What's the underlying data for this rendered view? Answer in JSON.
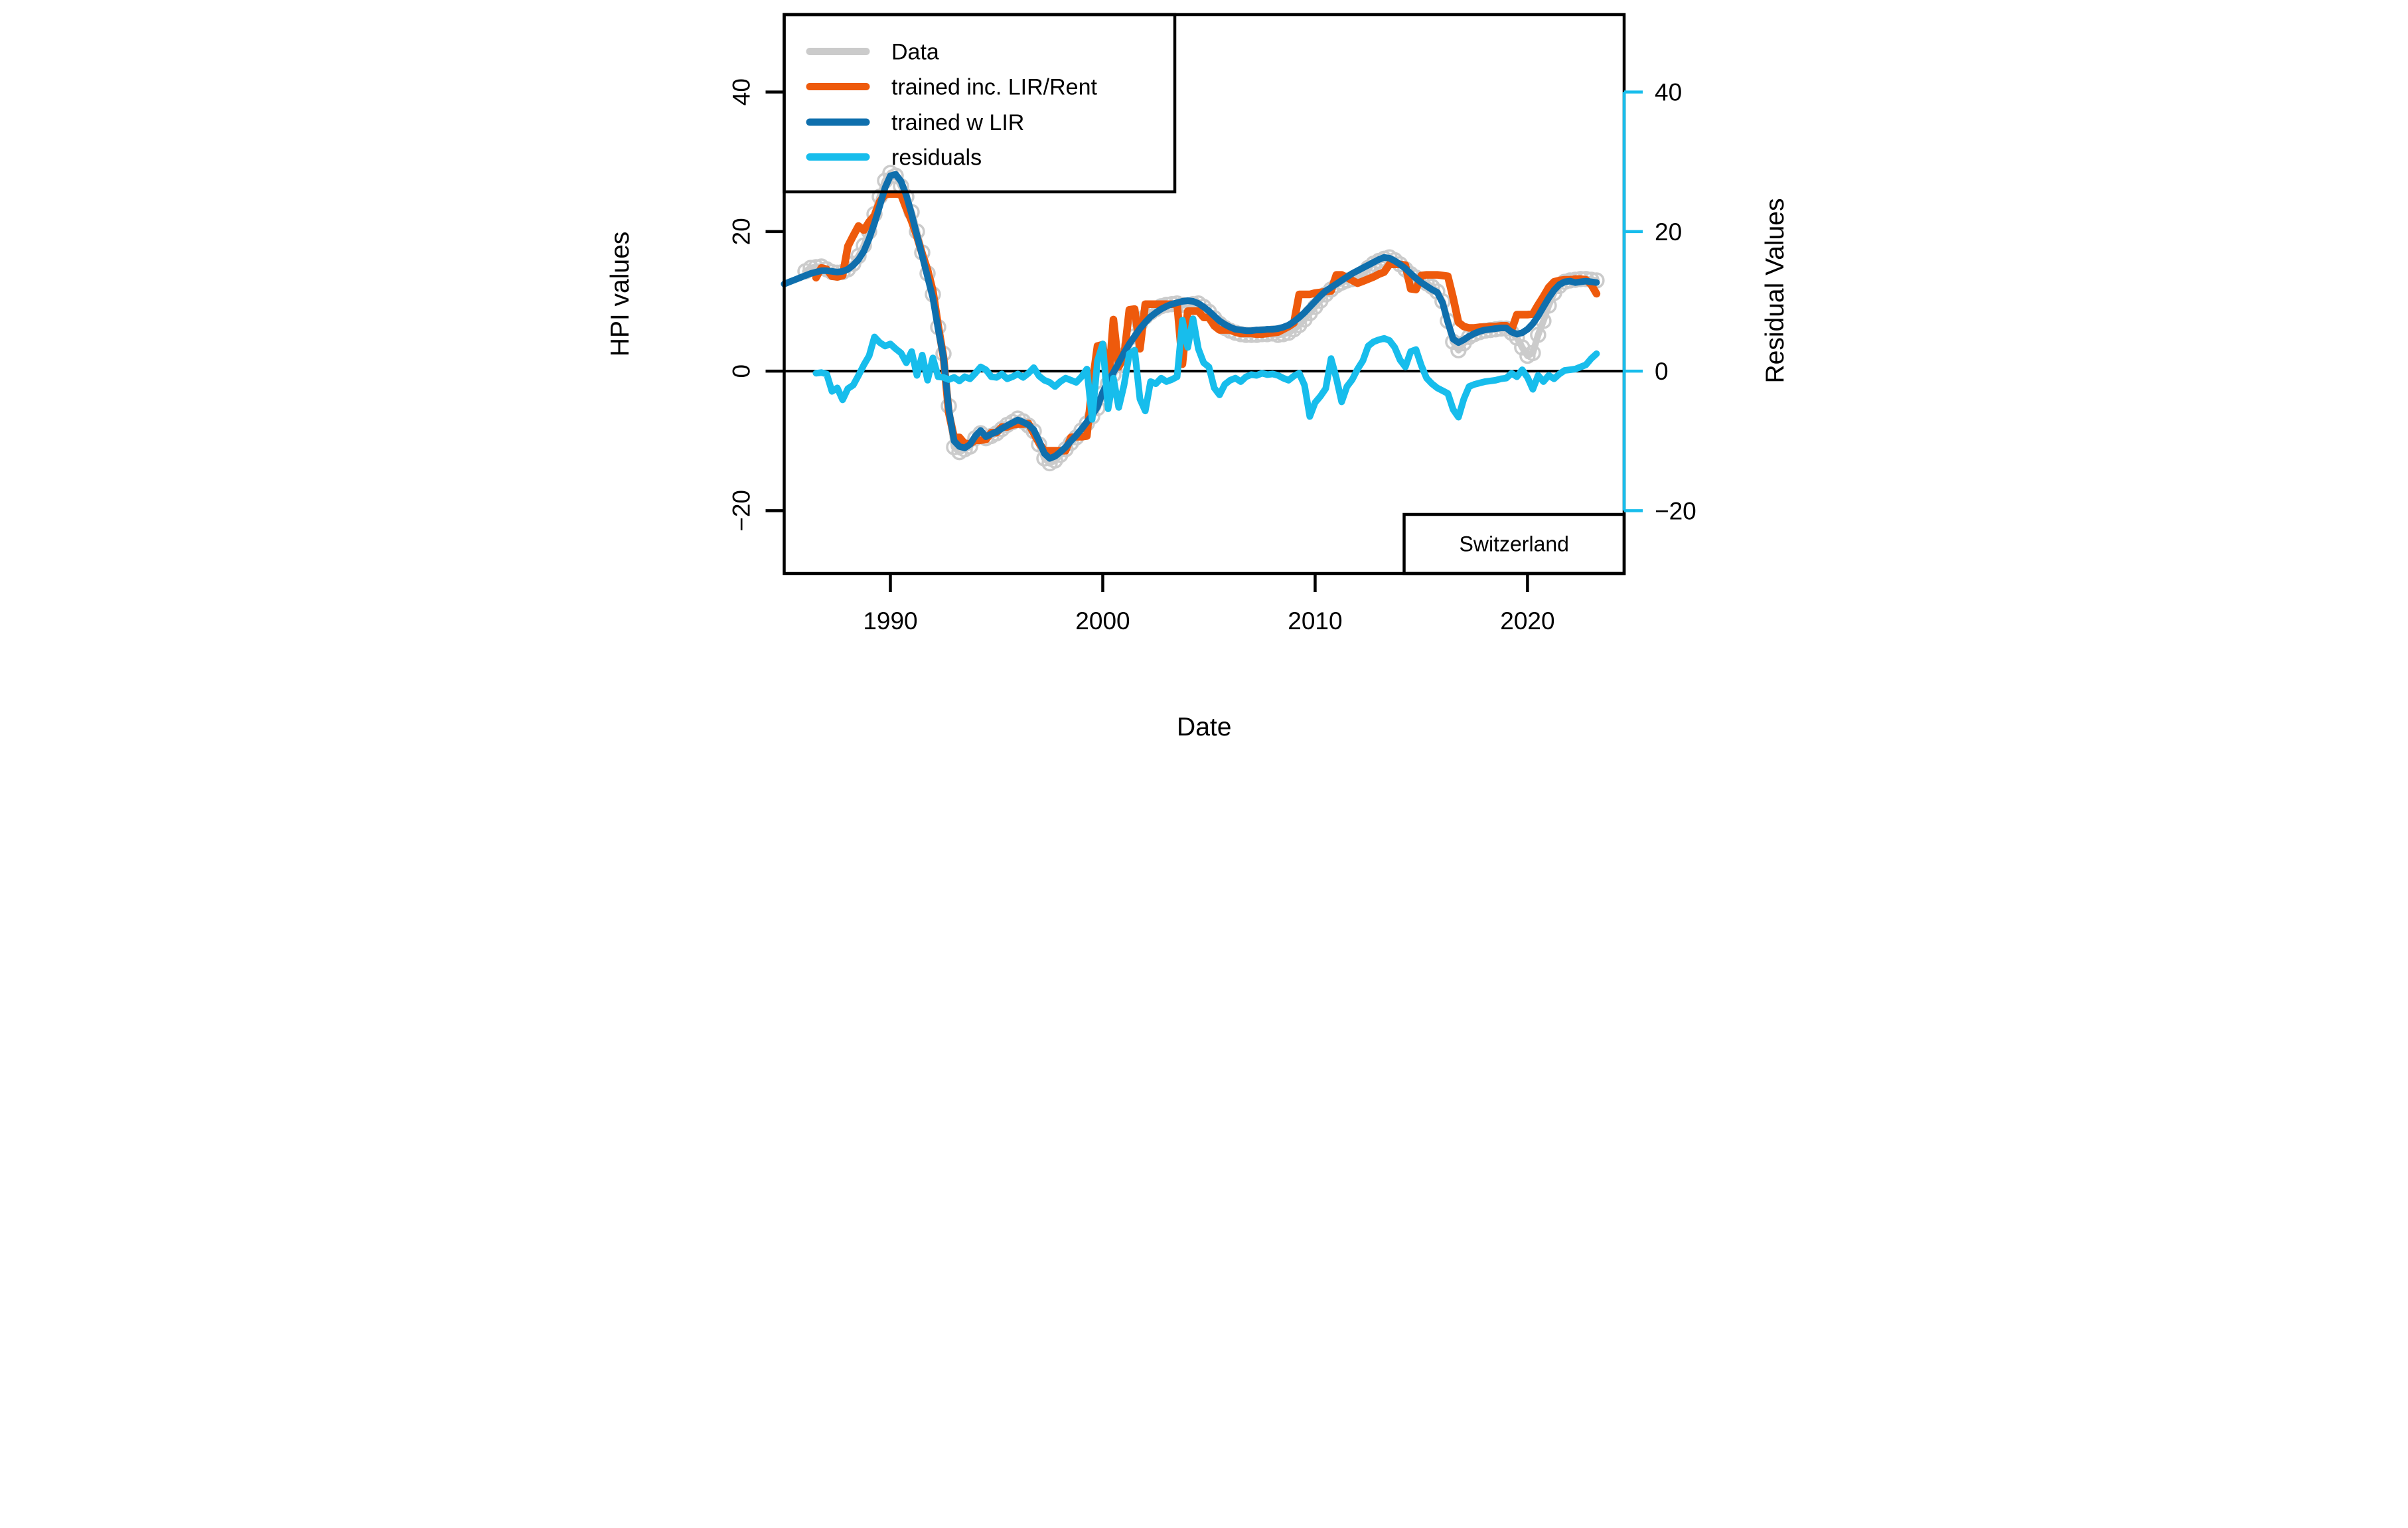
{
  "annotation_box": {
    "label": "Switzerland"
  },
  "axis_labels": {
    "x": "Date",
    "y_left": "HPI values",
    "y_right": "Residual Values"
  },
  "ticks": {
    "x": {
      "values": [
        1990,
        2000,
        2010,
        2020
      ],
      "labels": [
        "1990",
        "2000",
        "2010",
        "2020"
      ]
    },
    "y_left": {
      "values": [
        40,
        20,
        0,
        -20
      ],
      "labels": [
        "40",
        "20",
        "0",
        "−20"
      ]
    },
    "y_right": {
      "values": [
        40,
        20,
        0,
        -20
      ],
      "labels": [
        "40",
        "20",
        "0",
        "−20"
      ]
    }
  },
  "legend": {
    "entries": [
      {
        "label": "Data",
        "series": "data"
      },
      {
        "label": "trained inc. LIR/Rent",
        "series": "trained_inc_lir_rent"
      },
      {
        "label": "trained w LIR",
        "series": "trained_w_lir"
      },
      {
        "label": "residuals",
        "series": "residuals"
      }
    ]
  },
  "colors": {
    "data_gray": "#cbcbcb",
    "trained_inc_orange": "#ee5a0c",
    "trained_w_lir_blue": "#0f6fad",
    "residuals_cyan": "#17bdec",
    "axis_black": "#000000",
    "background": "#ffffff"
  },
  "chart_data": {
    "type": "line",
    "title": "",
    "xlabel": "Date",
    "ylabel_left": "HPI values",
    "ylabel_right": "Residual Values",
    "x_range": [
      1985.0,
      2024.55
    ],
    "y_range": [
      -29.0,
      51.1
    ],
    "zero_line": true,
    "grid": false,
    "legend_position": "topleft",
    "series": [
      {
        "name": "Data",
        "key": "data",
        "color": "#cbcbcb",
        "marker": "circle",
        "line_width": 10,
        "axis": "left",
        "x_start": 1986.0,
        "x_step": 0.25,
        "values": [
          14.3,
          14.8,
          14.9,
          15.0,
          14.6,
          14.2,
          14.1,
          14.2,
          14.6,
          15.4,
          16.5,
          18.0,
          20.0,
          22.5,
          25.0,
          27.3,
          28.4,
          28.0,
          26.5,
          25.0,
          22.8,
          20.0,
          17.0,
          14.0,
          11.0,
          6.3,
          2.5,
          -5.0,
          -10.9,
          -11.6,
          -11.2,
          -10.8,
          -9.6,
          -8.9,
          -9.6,
          -9.3,
          -8.9,
          -8.3,
          -7.7,
          -7.3,
          -6.8,
          -7.2,
          -7.8,
          -8.6,
          -10.5,
          -12.5,
          -13.2,
          -12.8,
          -12.0,
          -11.2,
          -10.3,
          -9.5,
          -8.5,
          -7.5,
          -6.5,
          -5.3,
          -3.2,
          -1.8,
          -0.5,
          0.9,
          2.3,
          3.7,
          5.0,
          6.8,
          7.8,
          8.4,
          8.9,
          9.3,
          9.5,
          9.6,
          9.7,
          9.5,
          9.4,
          9.6,
          9.7,
          9.2,
          8.5,
          7.6,
          6.8,
          6.2,
          5.8,
          5.5,
          5.3,
          5.2,
          5.2,
          5.2,
          5.3,
          5.3,
          5.4,
          5.2,
          5.3,
          5.5,
          6.0,
          6.6,
          7.4,
          8.3,
          9.2,
          10.1,
          11.0,
          11.7,
          12.3,
          12.7,
          13.0,
          13.2,
          13.4,
          13.9,
          14.8,
          15.4,
          15.8,
          16.1,
          16.3,
          15.9,
          15.3,
          14.6,
          13.9,
          13.4,
          13.0,
          12.6,
          12.1,
          11.4,
          10.0,
          7.2,
          4.2,
          3.0,
          4.0,
          4.9,
          5.3,
          5.6,
          5.8,
          5.9,
          6.0,
          6.1,
          6.1,
          5.5,
          4.8,
          3.4,
          2.2,
          2.6,
          5.2,
          7.2,
          9.4,
          11.2,
          12.2,
          12.8,
          13.0,
          13.1,
          13.2,
          13.2,
          13.1,
          13.0
        ]
      },
      {
        "name": "trained inc. LIR/Rent",
        "key": "trained_inc_lir_rent",
        "color": "#ee5a0c",
        "marker": "none",
        "line_width": 11.5,
        "axis": "left",
        "x_start": 1986.5,
        "x_step": 0.25,
        "values": [
          13.4,
          14.8,
          14.6,
          13.6,
          13.5,
          13.7,
          17.9,
          19.4,
          20.8,
          20.2,
          21.4,
          22.3,
          24.3,
          25.3,
          25.4,
          25.4,
          25.3,
          23.3,
          21.5,
          19.3,
          16.8,
          14.5,
          11.5,
          6.5,
          2.0,
          -6.0,
          -9.5,
          -9.5,
          -10.4,
          -10.4,
          -9.9,
          -9.9,
          -9.8,
          -8.8,
          -8.8,
          -8.0,
          -8.0,
          -7.7,
          -7.6,
          -7.6,
          -7.5,
          -8.9,
          -10.3,
          -11.4,
          -11.4,
          -11.4,
          -11.4,
          -11.4,
          -9.5,
          -9.4,
          -9.4,
          -9.3,
          -2.0,
          3.6,
          3.8,
          -2.4,
          7.4,
          0.6,
          2.1,
          8.8,
          8.9,
          3.2,
          9.6,
          9.6,
          9.6,
          9.6,
          9.6,
          9.6,
          9.6,
          1.0,
          8.6,
          8.6,
          8.6,
          7.7,
          7.7,
          6.5,
          5.9,
          5.9,
          5.9,
          5.6,
          5.4,
          5.4,
          5.4,
          5.3,
          5.3,
          5.4,
          5.5,
          5.6,
          6.0,
          6.4,
          6.9,
          11.0,
          11.0,
          11.0,
          11.2,
          11.3,
          11.4,
          11.5,
          13.8,
          13.8,
          13.4,
          13.0,
          12.6,
          12.9,
          13.2,
          13.5,
          13.9,
          14.2,
          15.3,
          15.3,
          15.3,
          15.2,
          11.8,
          11.7,
          13.7,
          13.8,
          13.8,
          13.8,
          13.7,
          13.6,
          10.5,
          7.0,
          6.4,
          6.2,
          6.2,
          6.3,
          6.3,
          6.4,
          6.4,
          6.5,
          6.5,
          5.9,
          8.1,
          8.1,
          8.1,
          8.2,
          9.5,
          10.7,
          12.0,
          12.8,
          13.0,
          13.1,
          13.1,
          13.2,
          13.2,
          13.1,
          12.4,
          11.1
        ]
      },
      {
        "name": "trained w LIR",
        "key": "trained_w_lir",
        "color": "#0f6fad",
        "marker": "none",
        "line_width": 10,
        "axis": "left",
        "x_start": 1985.0,
        "x_step": 0.25,
        "values": [
          12.5,
          12.8,
          13.1,
          13.4,
          13.7,
          14.0,
          14.2,
          14.4,
          14.4,
          14.3,
          14.2,
          14.3,
          14.6,
          15.2,
          16.0,
          17.2,
          19.0,
          21.2,
          23.7,
          26.3,
          28.0,
          28.2,
          27.2,
          25.2,
          22.5,
          19.5,
          16.5,
          13.5,
          10.5,
          6.0,
          2.0,
          -5.5,
          -10.0,
          -10.8,
          -11.0,
          -10.5,
          -9.3,
          -8.5,
          -9.4,
          -9.0,
          -8.7,
          -8.2,
          -7.8,
          -7.4,
          -7.0,
          -7.3,
          -7.7,
          -8.4,
          -10.0,
          -11.8,
          -12.5,
          -12.2,
          -11.6,
          -10.9,
          -10.0,
          -9.2,
          -8.3,
          -7.3,
          -6.3,
          -5.1,
          -3.0,
          -1.5,
          -0.2,
          1.2,
          2.6,
          3.9,
          5.0,
          6.1,
          7.0,
          7.8,
          8.4,
          8.9,
          9.3,
          9.6,
          9.8,
          10.0,
          10.1,
          10.0,
          9.7,
          9.2,
          8.6,
          7.9,
          7.2,
          6.7,
          6.3,
          6.0,
          5.9,
          5.8,
          5.8,
          5.9,
          5.9,
          6.0,
          6.0,
          6.1,
          6.3,
          6.6,
          7.1,
          7.7,
          8.4,
          9.2,
          10.0,
          10.8,
          11.5,
          12.0,
          12.5,
          13.0,
          13.5,
          14.0,
          14.4,
          14.8,
          15.2,
          15.6,
          16.0,
          16.3,
          16.2,
          15.8,
          15.3,
          14.7,
          14.0,
          13.3,
          12.7,
          12.2,
          11.7,
          11.3,
          9.8,
          7.0,
          4.6,
          4.1,
          4.5,
          5.0,
          5.4,
          5.7,
          5.9,
          6.0,
          6.1,
          6.2,
          6.2,
          5.6,
          5.3,
          5.5,
          6.0,
          6.8,
          7.9,
          9.2,
          10.5,
          11.6,
          12.4,
          12.8,
          12.9,
          12.7,
          12.8,
          12.9,
          12.8,
          12.7
        ]
      },
      {
        "name": "residuals",
        "key": "residuals",
        "color": "#17bdec",
        "marker": "none",
        "line_width": 10,
        "axis": "right",
        "x_start": 1986.5,
        "x_step": 0.25,
        "values": [
          -0.3,
          -0.2,
          -0.4,
          -2.9,
          -2.4,
          -4.1,
          -2.5,
          -2.0,
          -0.6,
          0.9,
          2.2,
          4.9,
          4.1,
          3.6,
          3.9,
          3.2,
          2.6,
          1.2,
          2.8,
          -0.6,
          2.3,
          -1.3,
          1.9,
          -0.8,
          -0.9,
          -1.2,
          -0.9,
          -1.4,
          -0.8,
          -1.1,
          -0.3,
          0.6,
          0.2,
          -0.8,
          -0.9,
          -0.4,
          -1.1,
          -0.8,
          -0.4,
          -0.9,
          -0.3,
          0.5,
          -0.7,
          -1.3,
          -1.6,
          -2.2,
          -1.5,
          -1.0,
          -1.3,
          -1.6,
          -0.8,
          0.3,
          -6.9,
          1.5,
          3.9,
          -5.4,
          -1.0,
          -5.2,
          -2.0,
          2.5,
          3.0,
          -4.0,
          -5.7,
          -1.5,
          -1.8,
          -1.0,
          -1.5,
          -1.2,
          -0.8,
          7.3,
          3.4,
          7.5,
          3.2,
          1.2,
          0.6,
          -2.4,
          -3.4,
          -1.9,
          -1.3,
          -1.0,
          -1.5,
          -0.8,
          -0.5,
          -0.6,
          -0.3,
          -0.5,
          -0.4,
          -0.6,
          -1.0,
          -1.3,
          -0.7,
          -0.3,
          -2.0,
          -6.5,
          -4.5,
          -3.6,
          -2.5,
          1.8,
          -1.0,
          -4.4,
          -2.2,
          -1.2,
          0.3,
          1.5,
          3.6,
          4.2,
          4.5,
          4.7,
          4.4,
          3.4,
          1.6,
          0.6,
          2.8,
          3.1,
          0.8,
          -1.0,
          -1.8,
          -2.4,
          -2.8,
          -3.2,
          -5.5,
          -6.6,
          -4.0,
          -2.2,
          -1.9,
          -1.7,
          -1.5,
          -1.4,
          -1.3,
          -1.1,
          -1.0,
          -0.3,
          -0.8,
          0.2,
          -0.9,
          -2.6,
          -0.6,
          -1.5,
          -0.6,
          -1.1,
          -0.4,
          0.1,
          0.2,
          0.3,
          0.6,
          0.9,
          1.8,
          2.5
        ]
      }
    ]
  }
}
